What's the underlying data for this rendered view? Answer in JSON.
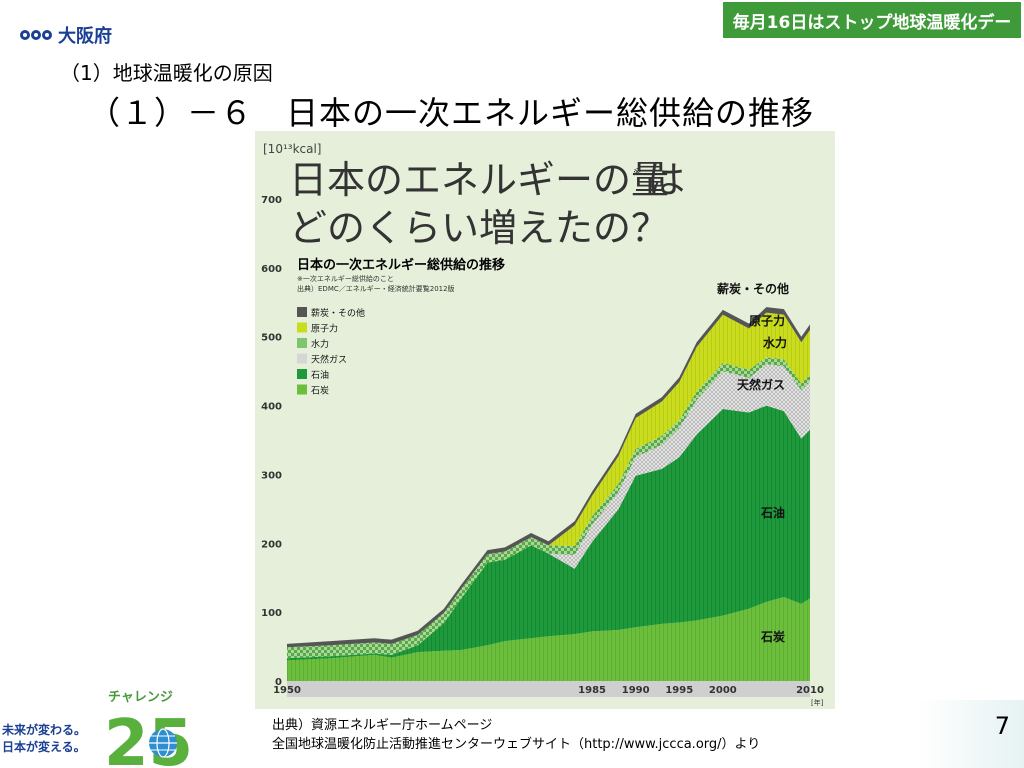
{
  "header": {
    "logo_text": "大阪府",
    "banner": "毎月16日はストップ地球温暖化デー",
    "subtitle": "（1）地球温暖化の原因",
    "title": "（１）－６　日本の一次エネルギー総供給の推移"
  },
  "footer": {
    "slogan_top": "チャレンジ",
    "slogan_num": "25",
    "slogan_line1": "未来が変わる。",
    "slogan_line2": "日本が変える。",
    "source_line1": "出典）資源エネルギー庁ホームページ",
    "source_line2": "全国地球温暖化防止活動推進センターウェブサイト（http://www.jccca.org/）より",
    "page": "7"
  },
  "chart_data": {
    "type": "area",
    "stacked": true,
    "unit": "[10¹³kcal]",
    "headline_line1": "日本のエネルギーの量",
    "headline_mark": "※",
    "headline_line1_end": "は",
    "headline_line2": "どのくらい増えたの？",
    "title": "日本の一次エネルギー総供給の推移",
    "note": "※一次エネルギー総供給のこと",
    "source": "出典）EDMC／エネルギー・経済統計要覧2012版",
    "x_unit": "[年]",
    "xlim": [
      1950,
      2010
    ],
    "ylim": [
      0,
      700
    ],
    "x_ticks": [
      1950,
      1985,
      1990,
      1995,
      2000,
      2010
    ],
    "y_ticks": [
      0,
      100,
      200,
      300,
      400,
      500,
      600,
      700
    ],
    "legend_position": "left",
    "legend": [
      {
        "name": "薪炭・その他",
        "color": "#555555"
      },
      {
        "name": "原子力",
        "color": "#c9dc1e"
      },
      {
        "name": "水力",
        "color": "#7fc46f"
      },
      {
        "name": "天然ガス",
        "color": "#d6d6d6"
      },
      {
        "name": "石油",
        "color": "#1e9a3c"
      },
      {
        "name": "石炭",
        "color": "#6cbf3c"
      }
    ],
    "x": [
      1950,
      1955,
      1960,
      1962,
      1965,
      1968,
      1970,
      1973,
      1975,
      1978,
      1980,
      1983,
      1985,
      1988,
      1990,
      1993,
      1995,
      1997,
      2000,
      2003,
      2005,
      2007,
      2009,
      2010
    ],
    "series": [
      {
        "name": "石炭",
        "color": "#6cbf3c",
        "values": [
          30,
          33,
          38,
          34,
          42,
          44,
          45,
          52,
          58,
          62,
          65,
          68,
          72,
          74,
          78,
          83,
          85,
          88,
          95,
          105,
          115,
          122,
          112,
          120
        ]
      },
      {
        "name": "石油",
        "color": "#1e9a3c",
        "values": [
          3,
          3,
          2,
          4,
          10,
          40,
          75,
          120,
          118,
          135,
          120,
          95,
          130,
          175,
          220,
          225,
          240,
          270,
          300,
          285,
          285,
          270,
          240,
          245
        ]
      },
      {
        "name": "天然ガス",
        "color": "#d6d6d6",
        "values": [
          0,
          0,
          0,
          0,
          0,
          0,
          0,
          0,
          0,
          0,
          0,
          20,
          25,
          25,
          27,
          35,
          42,
          50,
          55,
          50,
          60,
          65,
          70,
          70
        ]
      },
      {
        "name": "水力",
        "color": "#7fc46f",
        "values": [
          16,
          16,
          16,
          16,
          15,
          15,
          14,
          12,
          12,
          12,
          12,
          13,
          12,
          12,
          12,
          13,
          12,
          12,
          12,
          12,
          10,
          10,
          10,
          10
        ]
      },
      {
        "name": "原子力",
        "color": "#c9dc1e",
        "values": [
          0,
          0,
          0,
          0,
          0,
          0,
          0,
          0,
          0,
          0,
          0,
          30,
          30,
          40,
          45,
          50,
          55,
          65,
          70,
          60,
          65,
          65,
          60,
          65
        ]
      },
      {
        "name": "薪炭・その他",
        "color": "#555555",
        "values": [
          5,
          6,
          6,
          6,
          6,
          6,
          6,
          6,
          6,
          6,
          6,
          6,
          6,
          6,
          6,
          6,
          7,
          7,
          7,
          7,
          8,
          8,
          8,
          8
        ]
      }
    ],
    "annotations": [
      "薪炭・その他",
      "原子力",
      "水力",
      "天然ガス",
      "石油",
      "石炭"
    ]
  }
}
